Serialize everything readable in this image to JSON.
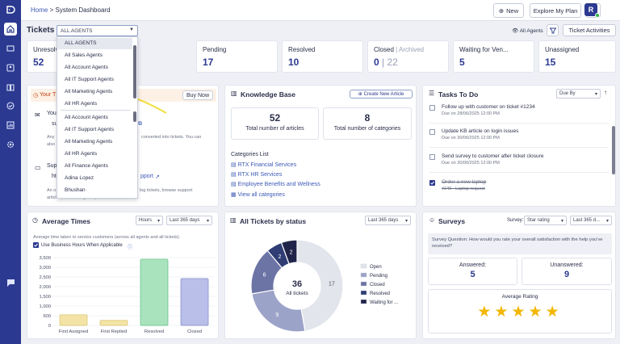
{
  "header": {
    "breadcrumb_home": "Home",
    "breadcrumb_sep": ">",
    "breadcrumb_current": "System Dashboard",
    "new_label": "New",
    "explore_label": "Explore My Plan",
    "avatar_initial": "R"
  },
  "tickets": {
    "title": "Tickets -",
    "agent_filter_value": "ALL AGENTS",
    "all_agents_label": "All Agents",
    "activities_label": "Ticket Activities"
  },
  "dropdown": {
    "options": [
      "ALL AGENTS",
      "All Sales Agents",
      "All Account Agents",
      "All IT Support Agents",
      "All Marketing Agents",
      "All HR Agents",
      "All Account Agents",
      "All IT Support Agents",
      "All Marketing Agents",
      "All HR Agents",
      "All Finance Agents",
      "Adina Lopez",
      "Bhushan"
    ],
    "selected_index": 0
  },
  "stats": [
    {
      "label": "Unresolved",
      "value": "52"
    },
    {
      "label": "Pending",
      "value": "17"
    },
    {
      "label": "Resolved",
      "value": "10"
    },
    {
      "label": "Closed",
      "label_extra": "Archived",
      "value": "0",
      "value_extra": "22"
    },
    {
      "label": "Waiting for Ven...",
      "value": "5"
    },
    {
      "label": "Unassigned",
      "value": "15"
    }
  ],
  "promo": {
    "title_partial": "Your T",
    "buy_now": "Buy Now",
    "row1_title": "Your",
    "row1_field": "su",
    "row1_desc_a": "Any",
    "row1_desc_b": "also",
    "row1_desc_right": "converted into tickets. You can",
    "row2_title": "Supp",
    "row2_field": "ht",
    "row2_link": "pport",
    "row2_desc_a": "An o",
    "row2_desc_b": "articles, and manage requests.",
    "row2_desc_right": "log tickets, browse support"
  },
  "knowledge_base": {
    "title": "Knowledge Base",
    "create_label": "Create New Article",
    "articles_count": "52",
    "articles_label": "Total number of articles",
    "categories_count": "8",
    "categories_label": "Total number of categories",
    "list_title": "Categories List",
    "categories": [
      "RTX Financial Services",
      "RTX HR Services",
      "Employee Benefits and Wellness"
    ],
    "view_all": "View all categories"
  },
  "tasks": {
    "title": "Tasks To Do",
    "sort_value": "Due By",
    "items": [
      {
        "text": "Follow up with customer on ticket #1234",
        "due": "Due on 28/06/2025 12:00 PM",
        "done": false
      },
      {
        "text": "Update KB article on login issues",
        "due": "Due on 30/06/2025 12:00 PM",
        "done": false
      },
      {
        "text": "Send survey to customer after ticket closure",
        "due": "Due on 30/06/2025 12:00 PM",
        "done": false
      },
      {
        "text": "Order a new laptop",
        "due": "#249 - Laptop request",
        "done": true
      }
    ]
  },
  "average_times": {
    "title": "Average Times",
    "unit_select": "Hours",
    "range_select": "Last 365 days",
    "description": "Average time taken to service customers (across all agents and all tickets).",
    "business_hours_label": "Use Business Hours When Applicable"
  },
  "status_chart": {
    "title": "All Tickets by status",
    "range_select": "Last 365 days",
    "center_value": "36",
    "center_label": "All tickets"
  },
  "surveys": {
    "title": "Surveys",
    "survey_label": "Survey:",
    "type_select": "Star rating",
    "range_select": "Last 365 d...",
    "question": "Survey Question: How would you rate your overall satisfaction with the help you've received?",
    "answered_label": "Answered:",
    "answered_value": "5",
    "unanswered_label": "Unanswered:",
    "unanswered_value": "9",
    "avg_label": "Average Rating",
    "stars": 5
  },
  "colors": {
    "brand": "#2b3990",
    "bar_first_assigned": "#f3e3a6",
    "bar_first_replied": "#f3e3a6",
    "bar_resolved": "#a9e3bd",
    "bar_closed": "#b9bfe8",
    "star": "#f2b705",
    "arrow": "#f2de3c"
  },
  "chart_data": [
    {
      "type": "bar",
      "title": "Average Times",
      "categories": [
        "First Assigned",
        "First Replied",
        "Resolved",
        "Closed"
      ],
      "values": [
        550,
        260,
        3420,
        2420
      ],
      "ylim": [
        0,
        3500
      ],
      "yticks": [
        "0",
        "500",
        "1,000",
        "1,500",
        "2,000",
        "2,500",
        "3,000",
        "3,500"
      ],
      "grid": true
    },
    {
      "type": "pie",
      "title": "All Tickets by status",
      "categories": [
        "Open",
        "Pending",
        "Closed",
        "Resolved",
        "Waiting for ..."
      ],
      "values": [
        17,
        9,
        6,
        2,
        2
      ],
      "colors": [
        "#e3e5ec",
        "#9ca3c8",
        "#6c74a6",
        "#2f3d74",
        "#20244a"
      ],
      "legend": "right"
    }
  ]
}
